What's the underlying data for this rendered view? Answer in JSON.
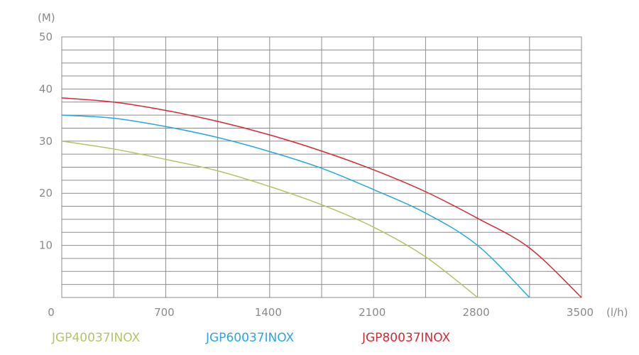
{
  "chart_data": {
    "type": "line",
    "title": "",
    "xlabel": "",
    "ylabel": "",
    "y_unit": "(M)",
    "x_unit": "(l/h)",
    "xlim": [
      0,
      3500
    ],
    "ylim": [
      0,
      50
    ],
    "x_ticks": [
      "0",
      "700",
      "1400",
      "2100",
      "2800",
      "3500"
    ],
    "y_ticks": [
      "10",
      "20",
      "30",
      "40",
      "50"
    ],
    "grid": true,
    "legend_position": "bottom",
    "series": [
      {
        "name": "JGP40037INOX",
        "color": "#b3c46a",
        "x": [
          0,
          350,
          700,
          1050,
          1400,
          1750,
          2100,
          2450,
          2800
        ],
        "y": [
          30,
          28.5,
          26.5,
          24.3,
          21.3,
          17.8,
          13.5,
          7.8,
          0
        ]
      },
      {
        "name": "JGP60037INOX",
        "color": "#29a8dc",
        "x": [
          0,
          350,
          700,
          1050,
          1400,
          1750,
          2100,
          2450,
          2800,
          3150
        ],
        "y": [
          35,
          34.4,
          32.8,
          30.7,
          28,
          24.8,
          20.7,
          16.2,
          10,
          0
        ]
      },
      {
        "name": "JGP80037INOX",
        "color": "#d42a36",
        "x": [
          0,
          350,
          700,
          1050,
          1400,
          1750,
          2100,
          2450,
          2800,
          3150,
          3500
        ],
        "y": [
          38.3,
          37.5,
          35.9,
          33.8,
          31.2,
          28.1,
          24.5,
          20.3,
          15.2,
          9.5,
          0
        ]
      }
    ]
  }
}
